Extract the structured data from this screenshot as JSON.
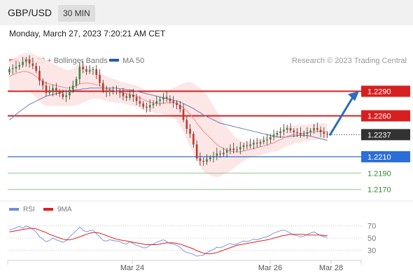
{
  "header": {
    "pair": "GBP/USD",
    "timeframe": "30 MIN"
  },
  "datetime": "Monday, March 27, 2023 7:20:21 AM CET",
  "legend": {
    "items": [
      {
        "label": "MA 20 + Bollinger Bands",
        "color": "#f08a8a"
      },
      {
        "label": "MA 50",
        "color": "#2c5aa0"
      }
    ],
    "credit": "Research © 2023 Trading Central"
  },
  "colors": {
    "up": "#3a8a3a",
    "down": "#c0392b",
    "ma20": "#f08a8a",
    "ma50": "#6b7fb0",
    "band_fill": "#fde2e2",
    "resistance": "#d62020",
    "support": "#2c6ed8",
    "support2": "#8fc88f",
    "rsi": "#6f8fd8",
    "rsi_ma": "#e02020",
    "arrow": "#2b6cc0",
    "current_price": "#333333"
  },
  "chart_data": [
    {
      "type": "line",
      "title": "GBP/USD",
      "subtitle": "30 MIN",
      "x_ticks": [
        "Mar 24",
        "Mar 26",
        "Mar 28"
      ],
      "y_range": [
        1.2162,
        1.2316
      ],
      "price_levels": [
        {
          "label": "1.2290",
          "value": 1.229,
          "kind": "resistance"
        },
        {
          "label": "1.2260",
          "value": 1.226,
          "kind": "resistance"
        },
        {
          "label": "1.2237",
          "value": 1.2237,
          "kind": "current"
        },
        {
          "label": "1.2210",
          "value": 1.221,
          "kind": "support"
        },
        {
          "label": "1.2190",
          "value": 1.219,
          "kind": "support2"
        },
        {
          "label": "1.2170",
          "value": 1.217,
          "kind": "support2"
        }
      ],
      "closes": [
        1.2317,
        1.2318,
        1.232,
        1.2322,
        1.2326,
        1.2329,
        1.2324,
        1.2321,
        1.2315,
        1.2303,
        1.2297,
        1.2288,
        1.229,
        1.2294,
        1.229,
        1.2287,
        1.2283,
        1.2285,
        1.2292,
        1.2297,
        1.2305,
        1.232,
        1.2317,
        1.2314,
        1.2316,
        1.2317,
        1.231,
        1.23,
        1.2291,
        1.2289,
        1.2291,
        1.229,
        1.2289,
        1.2288,
        1.2284,
        1.2282,
        1.2286,
        1.2283,
        1.2278,
        1.2275,
        1.2271,
        1.227,
        1.2273,
        1.2275,
        1.2278,
        1.228,
        1.2283,
        1.2281,
        1.2278,
        1.2276,
        1.2273,
        1.2268,
        1.2255,
        1.2244,
        1.2238,
        1.2225,
        1.2208,
        1.2205,
        1.2204,
        1.2207,
        1.2209,
        1.2211,
        1.2214,
        1.2213,
        1.2215,
        1.2218,
        1.222,
        1.2218,
        1.2219,
        1.2222,
        1.2224,
        1.2223,
        1.2225,
        1.2227,
        1.2226,
        1.2228,
        1.223,
        1.2231,
        1.2234,
        1.2237,
        1.2239,
        1.2241,
        1.2243,
        1.2245,
        1.2242,
        1.224,
        1.2239,
        1.2237,
        1.2238,
        1.224,
        1.2242,
        1.2245,
        1.2243,
        1.224,
        1.2238,
        1.2237
      ],
      "ma20": [
        1.2308,
        1.231,
        1.2312,
        1.2313,
        1.2314,
        1.2314,
        1.2313,
        1.2311,
        1.2308,
        1.2305,
        1.2302,
        1.23,
        1.2299,
        1.2298,
        1.2297,
        1.2296,
        1.2295,
        1.2294,
        1.2294,
        1.2295,
        1.2297,
        1.2299,
        1.23,
        1.23,
        1.23,
        1.2299,
        1.2298,
        1.2297,
        1.2295,
        1.2293,
        1.2292,
        1.2291,
        1.229,
        1.2289,
        1.2288,
        1.2287,
        1.2286,
        1.2285,
        1.2284,
        1.2282,
        1.228,
        1.2278,
        1.2277,
        1.2276,
        1.2275,
        1.2275,
        1.2275,
        1.2276,
        1.2276,
        1.2276,
        1.2275,
        1.2273,
        1.227,
        1.2266,
        1.2262,
        1.2257,
        1.2251,
        1.2246,
        1.2241,
        1.2237,
        1.2233,
        1.2229,
        1.2225,
        1.2222,
        1.222,
        1.2218,
        1.2217,
        1.2216,
        1.2216,
        1.2216,
        1.2217,
        1.2218,
        1.2219,
        1.222,
        1.2221,
        1.2222,
        1.2223,
        1.2224,
        1.2226,
        1.2227,
        1.2229,
        1.2231,
        1.2233,
        1.2235,
        1.2236,
        1.2237,
        1.2238,
        1.2238,
        1.2239,
        1.2239,
        1.224,
        1.224,
        1.2241,
        1.2241,
        1.2241,
        1.224
      ],
      "ma50": [
        1.2255,
        1.2258,
        1.2262,
        1.2265,
        1.2268,
        1.2271,
        1.2274,
        1.2276,
        1.2278,
        1.228,
        1.2282,
        1.2284,
        1.2285,
        1.2286,
        1.2287,
        1.2288,
        1.2289,
        1.229,
        1.2291,
        1.2291,
        1.2292,
        1.2292,
        1.2293,
        1.2293,
        1.2294,
        1.2294,
        1.2294,
        1.2294,
        1.2294,
        1.2294,
        1.2294,
        1.2294,
        1.2294,
        1.2293,
        1.2293,
        1.2292,
        1.2292,
        1.2291,
        1.229,
        1.2289,
        1.2288,
        1.2287,
        1.2286,
        1.2285,
        1.2284,
        1.2283,
        1.2282,
        1.2281,
        1.228,
        1.2279,
        1.2278,
        1.2277,
        1.2275,
        1.2273,
        1.2271,
        1.2269,
        1.2266,
        1.2264,
        1.2261,
        1.2259,
        1.2257,
        1.2255,
        1.2253,
        1.2251,
        1.225,
        1.2249,
        1.2248,
        1.2247,
        1.2246,
        1.2245,
        1.2244,
        1.2243,
        1.2242,
        1.2241,
        1.224,
        1.2239,
        1.2238,
        1.2237,
        1.2236,
        1.2235,
        1.2234,
        1.2234,
        1.2234,
        1.2234,
        1.2235,
        1.2235,
        1.2236,
        1.2236,
        1.2236,
        1.2236,
        1.2235,
        1.2234,
        1.2233,
        1.2232,
        1.2231,
        1.223
      ],
      "band_width": [
        0.0018,
        0.0019,
        0.002,
        0.0021,
        0.0022,
        0.0023,
        0.0024,
        0.0025,
        0.0026,
        0.0027,
        0.0028,
        0.0028,
        0.0027,
        0.0026,
        0.0025,
        0.0024,
        0.0023,
        0.0022,
        0.0022,
        0.0023,
        0.0024,
        0.0025,
        0.0024,
        0.0022,
        0.002,
        0.0018,
        0.0017,
        0.0016,
        0.0016,
        0.0015,
        0.0015,
        0.0014,
        0.0014,
        0.0013,
        0.0013,
        0.0013,
        0.0013,
        0.0013,
        0.0013,
        0.0013,
        0.0013,
        0.0013,
        0.0012,
        0.0012,
        0.0012,
        0.0012,
        0.0013,
        0.0014,
        0.0016,
        0.0018,
        0.0021,
        0.0025,
        0.003,
        0.0035,
        0.0039,
        0.0043,
        0.0046,
        0.0048,
        0.0049,
        0.0048,
        0.0046,
        0.0043,
        0.004,
        0.0036,
        0.0032,
        0.0028,
        0.0024,
        0.002,
        0.0017,
        0.0014,
        0.0012,
        0.0011,
        0.001,
        0.001,
        0.001,
        0.001,
        0.001,
        0.001,
        0.001,
        0.0011,
        0.0012,
        0.0012,
        0.0012,
        0.0012,
        0.0012,
        0.0011,
        0.0011,
        0.0011,
        0.001,
        0.001,
        0.001,
        0.001,
        0.001,
        0.001,
        0.001,
        0.001
      ]
    },
    {
      "type": "line",
      "title": "RSI",
      "legend": [
        "RSI",
        "9MA"
      ],
      "y_range": [
        20,
        80
      ],
      "y_ticks": [
        70,
        50,
        30
      ],
      "rsi": [
        63,
        65,
        67,
        69,
        66,
        70,
        68,
        64,
        60,
        52,
        48,
        44,
        46,
        50,
        47,
        45,
        43,
        46,
        52,
        57,
        62,
        68,
        63,
        60,
        62,
        63,
        57,
        52,
        46,
        45,
        47,
        46,
        45,
        44,
        41,
        40,
        44,
        41,
        38,
        36,
        34,
        34,
        38,
        40,
        43,
        45,
        47,
        44,
        41,
        40,
        38,
        35,
        29,
        26,
        25,
        23,
        20,
        21,
        22,
        26,
        29,
        31,
        35,
        34,
        36,
        39,
        41,
        39,
        40,
        43,
        45,
        44,
        46,
        48,
        47,
        49,
        51,
        52,
        55,
        58,
        60,
        62,
        63,
        61,
        58,
        55,
        54,
        52,
        53,
        56,
        58,
        60,
        57,
        54,
        52,
        51
      ],
      "rsi_ma": [
        60,
        61,
        62,
        63,
        64,
        65,
        66,
        66,
        65,
        63,
        61,
        59,
        56,
        54,
        52,
        50,
        48,
        47,
        47,
        48,
        50,
        52,
        54,
        56,
        58,
        59,
        59,
        58,
        56,
        54,
        52,
        50,
        48,
        47,
        46,
        45,
        44,
        43,
        42,
        41,
        40,
        39,
        39,
        39,
        39,
        40,
        41,
        42,
        42,
        42,
        41,
        40,
        38,
        36,
        34,
        32,
        29,
        27,
        25,
        24,
        24,
        25,
        26,
        28,
        30,
        32,
        34,
        36,
        38,
        39,
        40,
        41,
        42,
        43,
        44,
        45,
        46,
        47,
        48,
        50,
        51,
        53,
        54,
        55,
        56,
        56,
        56,
        56,
        56,
        55,
        55,
        55,
        55,
        55,
        54,
        54
      ]
    }
  ]
}
